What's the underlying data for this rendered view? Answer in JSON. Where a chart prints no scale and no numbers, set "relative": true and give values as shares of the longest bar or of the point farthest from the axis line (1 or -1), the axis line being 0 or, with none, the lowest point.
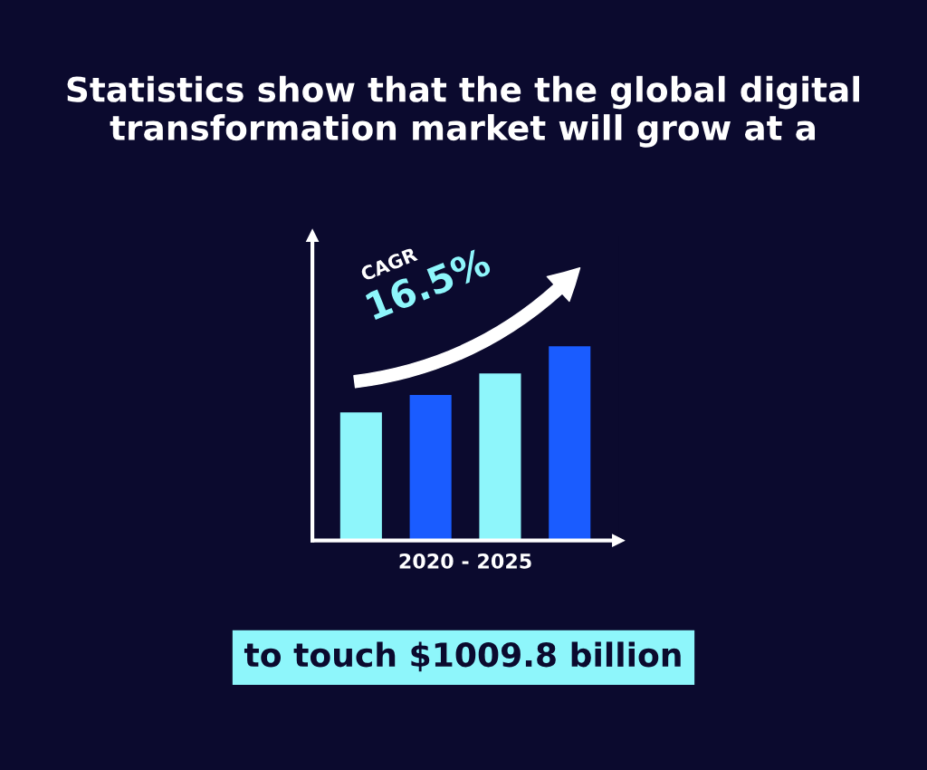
{
  "chart_data": {
    "type": "bar",
    "title": "Statistics show that the the global digital transformation market will grow at a",
    "categories": [
      null,
      null,
      null,
      null
    ],
    "relative": true,
    "values": [
      0.66,
      0.75,
      0.86,
      1
    ],
    "colors": [
      "#8ef6fb",
      "#1a5cff",
      "#8ef6fb",
      "#1a5cff"
    ],
    "xlabel": "2020 - 2025",
    "annotations": [
      "CAGR",
      "16.5%",
      "to touch $1009.8 billion"
    ],
    "grid": false,
    "legend": false,
    "tick_labels": false
  }
}
